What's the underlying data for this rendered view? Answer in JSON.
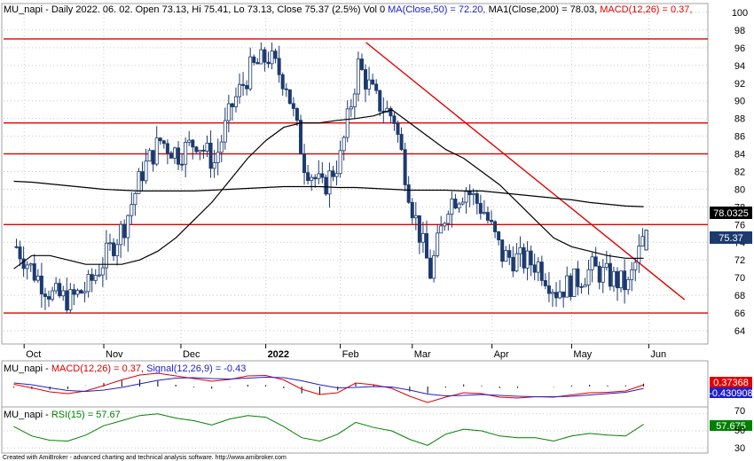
{
  "header": {
    "symbol": "MU_napi",
    "period": "Daily",
    "date": "2022. 06. 02.",
    "open_label": "Open",
    "open": "73.13",
    "high_label": "Hi",
    "high": "75.41",
    "low_label": "Lo",
    "low": "73.13",
    "close_label": "Close",
    "close": "75.37",
    "change": "(2.5%)",
    "vol": "Vol 0",
    "ma50_label": "MA(Close,50) = 72.20,",
    "ma200_label": "MA1(Close,200) = 78.03,",
    "macd_label": "MACD(12,26) = 0.37,"
  },
  "macd_panel": {
    "symbol": "MU_napi",
    "macd_label": "MACD(12,26) = 0.37,",
    "signal_label": "Signal(12,26,9) = -0.43",
    "macd_value": "0.37368",
    "signal_value": "-0.430908"
  },
  "rsi_panel": {
    "symbol": "MU_napi",
    "rsi_label": "RSI(15) = 57.67",
    "rsi_value": "57.675",
    "ticks": [
      "70",
      "50",
      "30"
    ]
  },
  "price_badges": {
    "ma200": "78.0325",
    "close": "75.37"
  },
  "footer": "Created with AmiBroker - advanced charting and technical analysis software. http://www.amibroker.com",
  "colors": {
    "candle": "#1c3a6e",
    "ma": "#000000",
    "resistance": "#e00000",
    "trend": "#e00000",
    "macd": "#e00000",
    "signal": "#2020c8",
    "rsi": "#008000",
    "grid": "#c8c8c8"
  },
  "chart_data": {
    "type": "line",
    "title": "MU_napi - Daily",
    "y_axis_ticks": [
      64,
      66,
      68,
      70,
      72,
      74,
      76,
      78,
      80,
      82,
      84,
      86,
      88,
      90,
      92,
      94,
      96,
      98,
      100
    ],
    "ylim": [
      62.5,
      101
    ],
    "x_axis_labels": [
      "Oct",
      "Nov",
      "Dec",
      "2022",
      "Feb",
      "Mar",
      "Apr",
      "May",
      "Jun"
    ],
    "horizontal_levels": [
      97,
      87.5,
      84,
      76,
      66
    ],
    "trendline": {
      "from": {
        "date": "2022-02-11",
        "value": 96.6
      },
      "to": {
        "date": "2022-06-15",
        "value": 67.5
      }
    },
    "series": [
      {
        "name": "MU_napi",
        "ohlc_weekly_close": [
          {
            "date": "2021-09-27",
            "value": 73.5
          },
          {
            "date": "2021-10-04",
            "value": 70.5
          },
          {
            "date": "2021-10-11",
            "value": 68.0
          },
          {
            "date": "2021-10-18",
            "value": 67.5
          },
          {
            "date": "2021-10-25",
            "value": 69.0
          },
          {
            "date": "2021-11-01",
            "value": 72.5
          },
          {
            "date": "2021-11-08",
            "value": 76.0
          },
          {
            "date": "2021-11-15",
            "value": 82.0
          },
          {
            "date": "2021-11-22",
            "value": 85.5
          },
          {
            "date": "2021-11-29",
            "value": 84.0
          },
          {
            "date": "2021-12-06",
            "value": 85.5
          },
          {
            "date": "2021-12-13",
            "value": 83.0
          },
          {
            "date": "2021-12-20",
            "value": 89.5
          },
          {
            "date": "2021-12-27",
            "value": 93.5
          },
          {
            "date": "2022-01-03",
            "value": 95.0
          },
          {
            "date": "2022-01-10",
            "value": 92.0
          },
          {
            "date": "2022-01-17",
            "value": 83.0
          },
          {
            "date": "2022-01-24",
            "value": 80.0
          },
          {
            "date": "2022-01-31",
            "value": 83.5
          },
          {
            "date": "2022-02-07",
            "value": 94.0
          },
          {
            "date": "2022-02-14",
            "value": 90.0
          },
          {
            "date": "2022-02-21",
            "value": 88.0
          },
          {
            "date": "2022-02-28",
            "value": 78.0
          },
          {
            "date": "2022-03-07",
            "value": 70.5
          },
          {
            "date": "2022-03-14",
            "value": 78.5
          },
          {
            "date": "2022-03-21",
            "value": 80.0
          },
          {
            "date": "2022-03-28",
            "value": 77.5
          },
          {
            "date": "2022-04-04",
            "value": 72.5
          },
          {
            "date": "2022-04-11",
            "value": 72.0
          },
          {
            "date": "2022-04-18",
            "value": 71.5
          },
          {
            "date": "2022-04-25",
            "value": 68.5
          },
          {
            "date": "2022-05-02",
            "value": 69.5
          },
          {
            "date": "2022-05-09",
            "value": 71.0
          },
          {
            "date": "2022-05-16",
            "value": 70.0
          },
          {
            "date": "2022-05-23",
            "value": 69.0
          },
          {
            "date": "2022-05-30",
            "value": 75.37
          }
        ]
      },
      {
        "name": "MA(Close,50)",
        "values_weekly": [
          71.0,
          72.5,
          72.5,
          72.0,
          71.5,
          71.5,
          71.5,
          72.0,
          73.0,
          74.5,
          76.5,
          78.5,
          81.0,
          83.5,
          85.5,
          87.0,
          87.5,
          87.5,
          87.8,
          88.0,
          88.3,
          89.0,
          87.5,
          86.0,
          84.5,
          83.5,
          82.0,
          80.5,
          78.5,
          76.5,
          74.5,
          73.5,
          73.0,
          72.5,
          72.2,
          72.2
        ]
      },
      {
        "name": "MA1(Close,200)",
        "values_weekly": [
          80.9,
          80.8,
          80.6,
          80.4,
          80.2,
          80.0,
          79.9,
          79.8,
          79.8,
          79.8,
          79.8,
          79.9,
          80.0,
          80.1,
          80.2,
          80.3,
          80.3,
          80.3,
          80.2,
          80.2,
          80.1,
          80.0,
          79.9,
          79.9,
          79.9,
          79.8,
          79.8,
          79.6,
          79.4,
          79.2,
          79.0,
          78.8,
          78.5,
          78.3,
          78.1,
          78.03
        ]
      }
    ]
  }
}
